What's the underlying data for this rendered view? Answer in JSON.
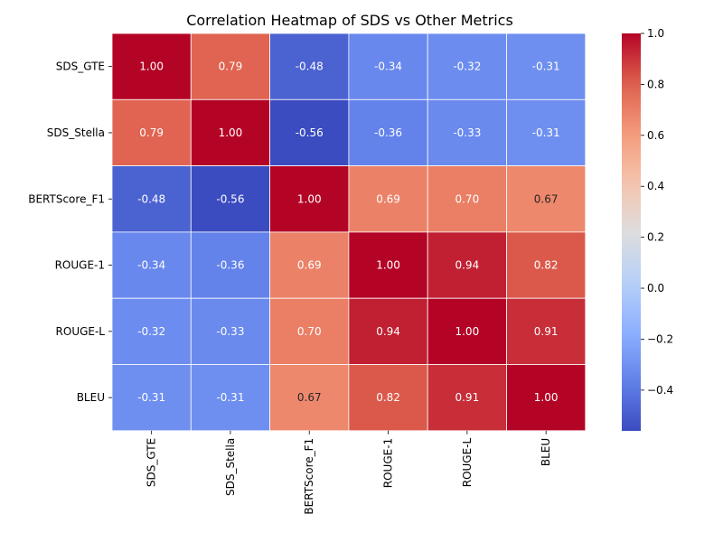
{
  "chart_data": {
    "type": "heatmap",
    "title": "Correlation Heatmap of SDS vs Other Metrics",
    "xlabel": "",
    "ylabel": "",
    "rows": [
      "SDS_GTE",
      "SDS_Stella",
      "BERTScore_F1",
      "ROUGE-1",
      "ROUGE-L",
      "BLEU"
    ],
    "columns": [
      "SDS_GTE",
      "SDS_Stella",
      "BERTScore_F1",
      "ROUGE-1",
      "ROUGE-L",
      "BLEU"
    ],
    "values": [
      [
        1.0,
        0.79,
        -0.48,
        -0.34,
        -0.32,
        -0.31
      ],
      [
        0.79,
        1.0,
        -0.56,
        -0.36,
        -0.33,
        -0.31
      ],
      [
        -0.48,
        -0.56,
        1.0,
        0.69,
        0.7,
        0.67
      ],
      [
        -0.34,
        -0.36,
        0.69,
        1.0,
        0.94,
        0.82
      ],
      [
        -0.32,
        -0.33,
        0.7,
        0.94,
        1.0,
        0.91
      ],
      [
        -0.31,
        -0.31,
        0.67,
        0.82,
        0.91,
        1.0
      ]
    ],
    "value_format": "0.00",
    "colormap": "coolwarm",
    "color_range": [
      -0.56,
      1.0
    ],
    "cell_border_color": "#ffffff",
    "colorbar": {
      "ticks": [
        -0.4,
        -0.2,
        0.0,
        0.2,
        0.4,
        0.6,
        0.8,
        1.0
      ],
      "tick_labels": [
        "−0.4",
        "−0.2",
        "0.0",
        "0.2",
        "0.4",
        "0.6",
        "0.8",
        "1.0"
      ],
      "position": "right"
    },
    "grid": false
  }
}
